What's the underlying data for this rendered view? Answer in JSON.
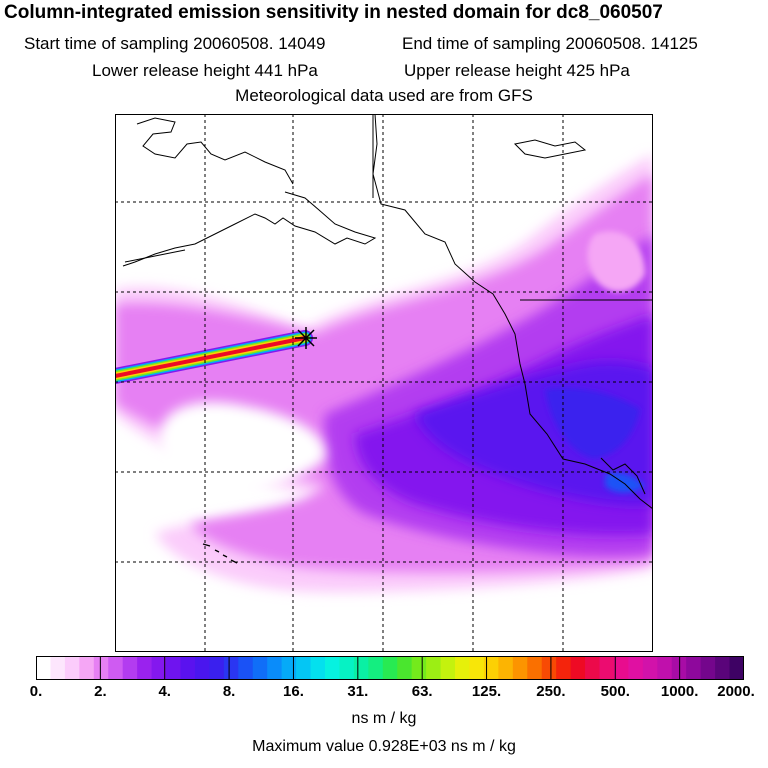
{
  "header": {
    "title": "Column-integrated emission sensitivity in nested domain for dc8_060507",
    "start_label": "Start time of sampling 20060508. 14049",
    "end_label": "End time of sampling 20060508. 14125",
    "lower_label": "Lower release height  441 hPa",
    "upper_label": "Upper release height  425 hPa",
    "met_label": "Meteorological data used are from GFS"
  },
  "colorbar": {
    "ticks": [
      "0.",
      "2.",
      "4.",
      "8.",
      "16.",
      "31.",
      "63.",
      "125.",
      "250.",
      "500.",
      "1000.",
      "2000."
    ],
    "colors": [
      "#ffffff",
      "#fde6fd",
      "#fbccfb",
      "#f5a6f5",
      "#e680f3",
      "#cf5bf2",
      "#b33cf0",
      "#9a22ee",
      "#8418ee",
      "#6f14ef",
      "#5a12ef",
      "#4a16ee",
      "#3a20ee",
      "#2a36f2",
      "#1a52f6",
      "#106ef8",
      "#0a8cfa",
      "#05aaf8",
      "#04c6f4",
      "#04e0ee",
      "#06f2e0",
      "#06f2c4",
      "#0af0a4",
      "#14ee80",
      "#28ea52",
      "#4ae62e",
      "#74ea1c",
      "#9cee14",
      "#c4f20e",
      "#e6f00a",
      "#f8e608",
      "#fcd004",
      "#fcb402",
      "#fc9400",
      "#fa7000",
      "#f84a04",
      "#f4240c",
      "#ee0a24",
      "#ec0a4a",
      "#ec0c70",
      "#e80c8e",
      "#e010a2",
      "#d212aa",
      "#c010ac",
      "#a80ca6",
      "#8e089c",
      "#74068c",
      "#5a047a",
      "#3e0264"
    ],
    "units": "ns m / kg",
    "max_label": "Maximum value  0.928E+03 ns m / kg"
  },
  "plume": {
    "receptor_marker": "receptor-star-icon",
    "core_color": "#ee0a24",
    "band_colors": [
      "#fcd004",
      "#74ea1c",
      "#05aaf8",
      "#8418ee"
    ]
  }
}
